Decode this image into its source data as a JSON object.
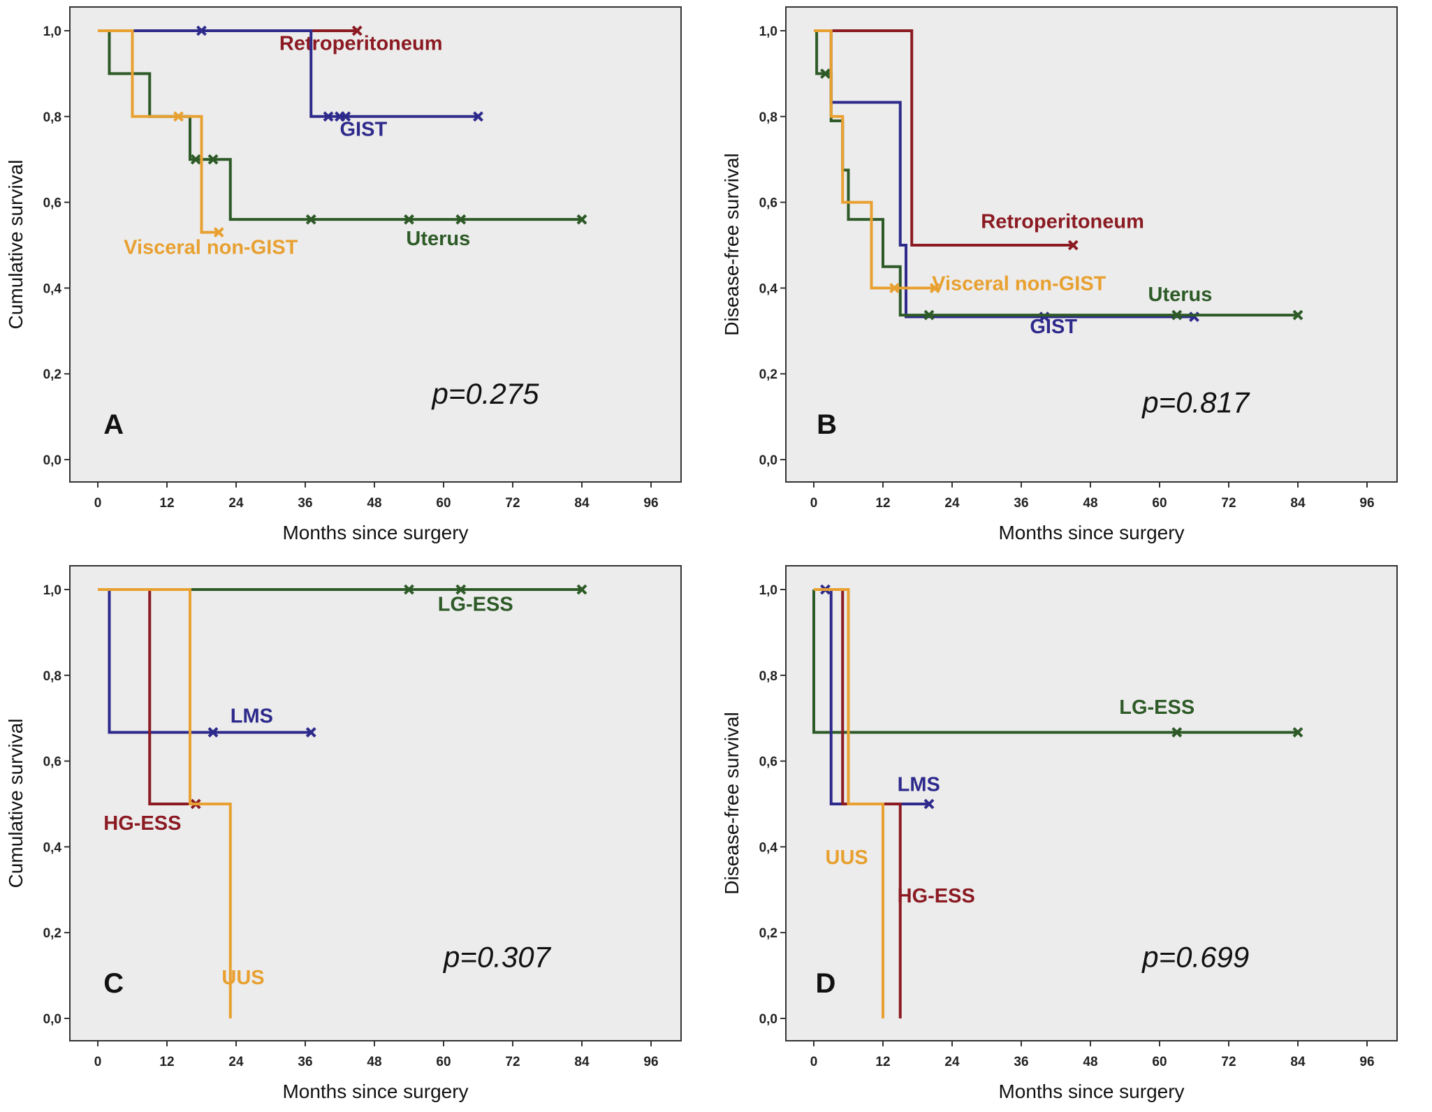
{
  "chart_data": [
    {
      "type": "line",
      "subtype": "kaplan-meier step",
      "panel_letter": "A",
      "xlabel": "Months since surgery",
      "ylabel": "Cumulative survival",
      "xlim": [
        0,
        96
      ],
      "ylim": [
        0,
        1
      ],
      "xticks": [
        "0",
        "12",
        "24",
        "36",
        "48",
        "60",
        "72",
        "84",
        "96"
      ],
      "yticks": [
        "0,0",
        "0,2",
        "0,4",
        "0,6",
        "0,8",
        "1,0"
      ],
      "annotation": "p=0.275",
      "grid": false,
      "series": [
        {
          "name": "Retroperitoneum",
          "color": "#8b1a22",
          "steps": [
            [
              0,
              1.0
            ],
            [
              45,
              1.0
            ]
          ],
          "censored": [
            45
          ]
        },
        {
          "name": "GIST",
          "color": "#2e2a8c",
          "steps": [
            [
              0,
              1.0
            ],
            [
              37,
              0.8
            ],
            [
              66,
              0.8
            ]
          ],
          "censored": [
            18,
            40,
            42,
            43,
            66
          ]
        },
        {
          "name": "Uterus",
          "color": "#2d5a27",
          "steps": [
            [
              0,
              1.0
            ],
            [
              2,
              0.9
            ],
            [
              9,
              0.8
            ],
            [
              16,
              0.7
            ],
            [
              23,
              0.56
            ],
            [
              84,
              0.56
            ]
          ],
          "censored": [
            17,
            20,
            37,
            54,
            63,
            84
          ]
        },
        {
          "name": "Visceral non-GIST",
          "color": "#e8a030",
          "steps": [
            [
              0,
              1.0
            ],
            [
              6,
              0.8
            ],
            [
              18,
              0.53
            ],
            [
              21,
              0.53
            ]
          ],
          "censored": [
            14,
            21
          ]
        }
      ]
    },
    {
      "type": "line",
      "subtype": "kaplan-meier step",
      "panel_letter": "B",
      "xlabel": "Months since surgery",
      "ylabel": "Disease-free survival",
      "xlim": [
        0,
        96
      ],
      "ylim": [
        0,
        1
      ],
      "xticks": [
        "0",
        "12",
        "24",
        "36",
        "48",
        "60",
        "72",
        "84",
        "96"
      ],
      "yticks": [
        "0,0",
        "0,2",
        "0,4",
        "0,6",
        "0,8",
        "1,0"
      ],
      "annotation": "p=0.817",
      "grid": false,
      "series": [
        {
          "name": "Retroperitoneum",
          "color": "#8b1a22",
          "steps": [
            [
              0,
              1.0
            ],
            [
              17,
              0.5
            ],
            [
              45,
              0.5
            ]
          ],
          "censored": [
            45
          ]
        },
        {
          "name": "GIST",
          "color": "#2e2a8c",
          "steps": [
            [
              0,
              1.0
            ],
            [
              3,
              0.833
            ],
            [
              15,
              0.5
            ],
            [
              16,
              0.333
            ],
            [
              66,
              0.333
            ]
          ],
          "censored": [
            40,
            66
          ]
        },
        {
          "name": "Uterus",
          "color": "#2d5a27",
          "steps": [
            [
              0,
              1.0
            ],
            [
              0.5,
              0.9
            ],
            [
              3,
              0.79
            ],
            [
              5,
              0.675
            ],
            [
              6,
              0.56
            ],
            [
              12,
              0.45
            ],
            [
              15,
              0.337
            ],
            [
              84,
              0.337
            ]
          ],
          "censored": [
            2,
            20,
            63,
            84
          ]
        },
        {
          "name": "Visceral non-GIST",
          "color": "#e8a030",
          "steps": [
            [
              0,
              1.0
            ],
            [
              3,
              0.8
            ],
            [
              5,
              0.6
            ],
            [
              10,
              0.4
            ],
            [
              21,
              0.4
            ]
          ],
          "censored": [
            14,
            21
          ]
        }
      ]
    },
    {
      "type": "line",
      "subtype": "kaplan-meier step",
      "panel_letter": "C",
      "xlabel": "Months since surgery",
      "ylabel": "Cumulative survival",
      "xlim": [
        0,
        96
      ],
      "ylim": [
        0,
        1
      ],
      "xticks": [
        "0",
        "12",
        "24",
        "36",
        "48",
        "60",
        "72",
        "84",
        "96"
      ],
      "yticks": [
        "0,0",
        "0,2",
        "0,4",
        "0,6",
        "0,8",
        "1,0"
      ],
      "annotation": "p=0.307",
      "grid": false,
      "series": [
        {
          "name": "LG-ESS",
          "color": "#2d5a27",
          "steps": [
            [
              0,
              1.0
            ],
            [
              84,
              1.0
            ]
          ],
          "censored": [
            54,
            63,
            84
          ]
        },
        {
          "name": "LMS",
          "color": "#2e2a8c",
          "steps": [
            [
              0,
              1.0
            ],
            [
              2,
              0.667
            ],
            [
              37,
              0.667
            ]
          ],
          "censored": [
            20,
            37
          ]
        },
        {
          "name": "HG-ESS",
          "color": "#8b1a22",
          "steps": [
            [
              0,
              1.0
            ],
            [
              9,
              0.5
            ],
            [
              17,
              0.5
            ]
          ],
          "censored": [
            17
          ]
        },
        {
          "name": "UUS",
          "color": "#e8a030",
          "steps": [
            [
              0,
              1.0
            ],
            [
              16,
              0.5
            ],
            [
              23,
              0.0
            ]
          ],
          "censored": []
        }
      ]
    },
    {
      "type": "line",
      "subtype": "kaplan-meier step",
      "panel_letter": "D",
      "xlabel": "Months since surgery",
      "ylabel": "Disease-free survival",
      "xlim": [
        0,
        96
      ],
      "ylim": [
        0,
        1
      ],
      "xticks": [
        "0",
        "12",
        "24",
        "36",
        "48",
        "60",
        "72",
        "84",
        "96"
      ],
      "yticks": [
        "0,0",
        "0,2",
        "0,4",
        "0,6",
        "0,8",
        "1,0"
      ],
      "annotation": "p=0.699",
      "grid": false,
      "series": [
        {
          "name": "LG-ESS",
          "color": "#2d5a27",
          "steps": [
            [
              0,
              1.0
            ],
            [
              0,
              0.667
            ],
            [
              84,
              0.667
            ]
          ],
          "censored": [
            63,
            84
          ]
        },
        {
          "name": "LMS",
          "color": "#2e2a8c",
          "steps": [
            [
              0,
              1.0
            ],
            [
              3,
              0.5
            ],
            [
              20,
              0.5
            ]
          ],
          "censored": [
            2,
            20
          ]
        },
        {
          "name": "HG-ESS",
          "color": "#8b1a22",
          "steps": [
            [
              0,
              1.0
            ],
            [
              5,
              0.5
            ],
            [
              15,
              0.0
            ]
          ],
          "censored": []
        },
        {
          "name": "UUS",
          "color": "#e8a030",
          "steps": [
            [
              0,
              1.0
            ],
            [
              6,
              0.5
            ],
            [
              12,
              0.0
            ]
          ],
          "censored": []
        }
      ]
    }
  ]
}
